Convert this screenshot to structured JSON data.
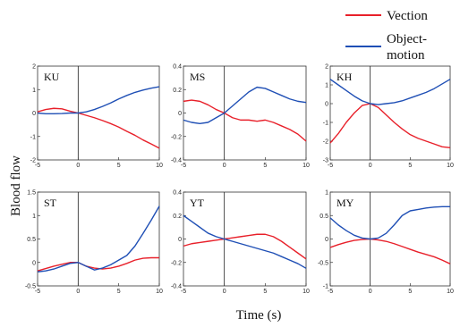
{
  "figure": {
    "xlabel": "Time (s)",
    "ylabel": "Blood flow",
    "legend": [
      {
        "name": "Vection",
        "color": "#e8202a"
      },
      {
        "name": "Object-",
        "name2": "motion",
        "color": "#1f4fb5"
      }
    ]
  },
  "chart_data": [
    {
      "type": "line",
      "title": "KU",
      "xlim": [
        -5,
        10
      ],
      "ylim": [
        -2,
        2
      ],
      "xticks": [
        -5,
        0,
        5,
        10
      ],
      "yticks": [
        -2,
        -1,
        0,
        1,
        2
      ],
      "xticklabels": [
        "-5",
        "0",
        "5",
        "10"
      ],
      "yticklabels": [
        "-2",
        "-1",
        "0",
        "1",
        "2"
      ],
      "x": [
        -5,
        -4,
        -3,
        -2,
        -1,
        0,
        1,
        2,
        3,
        4,
        5,
        6,
        7,
        8,
        9,
        10
      ],
      "series": [
        {
          "name": "Vection",
          "values": [
            0.05,
            0.15,
            0.2,
            0.18,
            0.08,
            0.0,
            -0.1,
            -0.2,
            -0.32,
            -0.45,
            -0.6,
            -0.78,
            -0.95,
            -1.15,
            -1.32,
            -1.5
          ]
        },
        {
          "name": "Object-motion",
          "values": [
            0.0,
            -0.03,
            -0.03,
            -0.02,
            0.0,
            0.0,
            0.05,
            0.15,
            0.28,
            0.43,
            0.6,
            0.75,
            0.88,
            0.98,
            1.06,
            1.12
          ]
        }
      ]
    },
    {
      "type": "line",
      "title": "MS",
      "xlim": [
        -5,
        10
      ],
      "ylim": [
        -0.4,
        0.4
      ],
      "xticks": [
        -5,
        0,
        5,
        10
      ],
      "yticks": [
        -0.4,
        -0.2,
        0,
        0.2,
        0.4
      ],
      "xticklabels": [
        "-5",
        "0",
        "5",
        "10"
      ],
      "yticklabels": [
        "-0.4",
        "-0.2",
        "0",
        "0.2",
        "0.4"
      ],
      "x": [
        -5,
        -4,
        -3,
        -2,
        -1,
        0,
        1,
        2,
        3,
        4,
        5,
        6,
        7,
        8,
        9,
        10
      ],
      "series": [
        {
          "name": "Vection",
          "values": [
            0.1,
            0.11,
            0.1,
            0.07,
            0.03,
            0.0,
            -0.04,
            -0.06,
            -0.06,
            -0.07,
            -0.06,
            -0.08,
            -0.11,
            -0.14,
            -0.18,
            -0.24
          ]
        },
        {
          "name": "Object-motion",
          "values": [
            -0.06,
            -0.08,
            -0.09,
            -0.08,
            -0.04,
            0.0,
            0.06,
            0.12,
            0.18,
            0.22,
            0.21,
            0.18,
            0.15,
            0.12,
            0.1,
            0.09
          ]
        }
      ]
    },
    {
      "type": "line",
      "title": "KH",
      "xlim": [
        -5,
        10
      ],
      "ylim": [
        -3,
        2
      ],
      "xticks": [
        -5,
        0,
        5,
        10
      ],
      "yticks": [
        -3,
        -2,
        -1,
        0,
        1,
        2
      ],
      "xticklabels": [
        "-5",
        "0",
        "5",
        "10"
      ],
      "yticklabels": [
        "-3",
        "-2",
        "-1",
        "0",
        "1",
        "2"
      ],
      "x": [
        -5,
        -4,
        -3,
        -2,
        -1,
        0,
        1,
        2,
        3,
        4,
        5,
        6,
        7,
        8,
        9,
        10
      ],
      "series": [
        {
          "name": "Vection",
          "values": [
            -2.1,
            -1.6,
            -1.0,
            -0.5,
            -0.1,
            0.0,
            -0.2,
            -0.6,
            -1.0,
            -1.35,
            -1.65,
            -1.85,
            -2.0,
            -2.15,
            -2.3,
            -2.35
          ]
        },
        {
          "name": "Object-motion",
          "values": [
            1.3,
            1.0,
            0.7,
            0.4,
            0.15,
            0.0,
            -0.05,
            0.0,
            0.05,
            0.15,
            0.3,
            0.45,
            0.6,
            0.8,
            1.05,
            1.3
          ]
        }
      ]
    },
    {
      "type": "line",
      "title": "ST",
      "xlim": [
        -5,
        10
      ],
      "ylim": [
        -0.5,
        1.5
      ],
      "xticks": [
        -5,
        0,
        5,
        10
      ],
      "yticks": [
        -0.5,
        0,
        0.5,
        1,
        1.5
      ],
      "xticklabels": [
        "-5",
        "0",
        "5",
        "10"
      ],
      "yticklabels": [
        "-0.5",
        "0",
        "0.5",
        "1",
        "1.5"
      ],
      "x": [
        -5,
        -4,
        -3,
        -2,
        -1,
        0,
        1,
        2,
        3,
        4,
        5,
        6,
        7,
        8,
        9,
        10
      ],
      "series": [
        {
          "name": "Vection",
          "values": [
            -0.18,
            -0.13,
            -0.08,
            -0.04,
            0.0,
            0.0,
            -0.08,
            -0.12,
            -0.14,
            -0.12,
            -0.08,
            -0.02,
            0.05,
            0.09,
            0.1,
            0.1
          ]
        },
        {
          "name": "Object-motion",
          "values": [
            -0.2,
            -0.18,
            -0.14,
            -0.08,
            -0.02,
            0.0,
            -0.08,
            -0.16,
            -0.12,
            -0.05,
            0.05,
            0.15,
            0.35,
            0.62,
            0.9,
            1.2
          ]
        }
      ]
    },
    {
      "type": "line",
      "title": "YT",
      "xlim": [
        -5,
        10
      ],
      "ylim": [
        -0.4,
        0.4
      ],
      "xticks": [
        -5,
        0,
        5,
        10
      ],
      "yticks": [
        -0.4,
        -0.2,
        0,
        0.2,
        0.4
      ],
      "xticklabels": [
        "-5",
        "0",
        "5",
        "10"
      ],
      "yticklabels": [
        "-0.4",
        "-0.2",
        "0",
        "0.2",
        "0.4"
      ],
      "x": [
        -5,
        -4,
        -3,
        -2,
        -1,
        0,
        1,
        2,
        3,
        4,
        5,
        6,
        7,
        8,
        9,
        10
      ],
      "series": [
        {
          "name": "Vection",
          "values": [
            -0.06,
            -0.04,
            -0.03,
            -0.02,
            -0.01,
            0.0,
            0.01,
            0.02,
            0.03,
            0.04,
            0.04,
            0.02,
            -0.02,
            -0.07,
            -0.12,
            -0.17
          ]
        },
        {
          "name": "Object-motion",
          "values": [
            0.2,
            0.15,
            0.1,
            0.05,
            0.02,
            0.0,
            -0.02,
            -0.04,
            -0.06,
            -0.08,
            -0.1,
            -0.12,
            -0.15,
            -0.18,
            -0.21,
            -0.25
          ]
        }
      ]
    },
    {
      "type": "line",
      "title": "MY",
      "xlim": [
        -5,
        10
      ],
      "ylim": [
        -1,
        1
      ],
      "xticks": [
        -5,
        0,
        5,
        10
      ],
      "yticks": [
        -1,
        -0.5,
        0,
        0.5,
        1
      ],
      "xticklabels": [
        "-5",
        "0",
        "5",
        "10"
      ],
      "yticklabels": [
        "-1",
        "-0.5",
        "0",
        "0.5",
        "1"
      ],
      "x": [
        -5,
        -4,
        -3,
        -2,
        -1,
        0,
        1,
        2,
        3,
        4,
        5,
        6,
        7,
        8,
        9,
        10
      ],
      "series": [
        {
          "name": "Vection",
          "values": [
            -0.18,
            -0.12,
            -0.07,
            -0.03,
            -0.01,
            0.0,
            -0.02,
            -0.05,
            -0.1,
            -0.16,
            -0.22,
            -0.28,
            -0.33,
            -0.38,
            -0.45,
            -0.53
          ]
        },
        {
          "name": "Object-motion",
          "values": [
            0.45,
            0.3,
            0.18,
            0.08,
            0.02,
            0.0,
            0.02,
            0.12,
            0.3,
            0.5,
            0.6,
            0.63,
            0.66,
            0.68,
            0.69,
            0.69
          ]
        }
      ]
    }
  ]
}
